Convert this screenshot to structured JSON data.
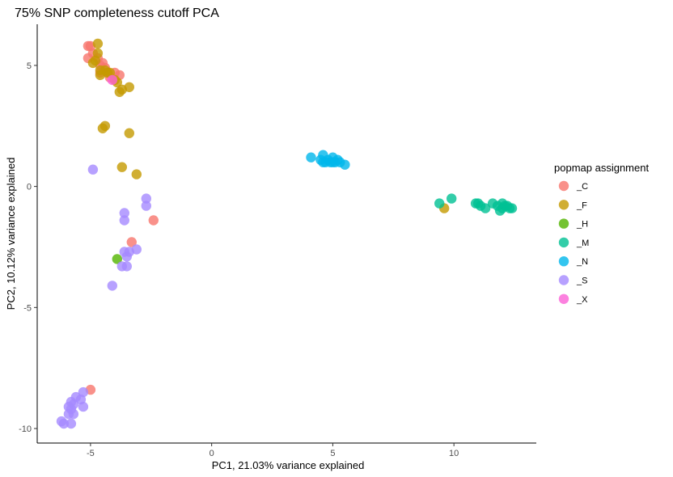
{
  "chart_data": {
    "type": "scatter",
    "title": "75% SNP completeness cutoff PCA",
    "xlabel": "PC1, 21.03% variance explained",
    "ylabel": "PC2, 10.12% variance explained",
    "xlim": [
      -7.2,
      13.4
    ],
    "ylim": [
      -10.6,
      6.7
    ],
    "xticks": [
      -5,
      0,
      5,
      10
    ],
    "yticks": [
      5,
      0,
      -5,
      -10
    ],
    "grid": false,
    "legend": {
      "title": "popmap assignment",
      "position": "right"
    },
    "series": [
      {
        "name": "_C",
        "color": "#F8766D",
        "points": [
          [
            -5.1,
            5.8
          ],
          [
            -5.0,
            5.8
          ],
          [
            -4.9,
            5.5
          ],
          [
            -5.1,
            5.3
          ],
          [
            -4.7,
            5.3
          ],
          [
            -4.6,
            5.0
          ],
          [
            -4.5,
            5.1
          ],
          [
            -4.4,
            4.9
          ],
          [
            -4.3,
            4.7
          ],
          [
            -4.6,
            4.7
          ],
          [
            -4.0,
            4.7
          ],
          [
            -3.8,
            4.6
          ],
          [
            -4.2,
            4.5
          ],
          [
            -2.4,
            -1.4
          ],
          [
            -3.3,
            -2.3
          ],
          [
            -5.0,
            -8.4
          ]
        ]
      },
      {
        "name": "_F",
        "color": "#C49A00",
        "points": [
          [
            -4.7,
            5.9
          ],
          [
            -4.7,
            5.5
          ],
          [
            -4.8,
            5.2
          ],
          [
            -4.9,
            5.1
          ],
          [
            -4.6,
            4.8
          ],
          [
            -4.4,
            4.8
          ],
          [
            -4.3,
            4.7
          ],
          [
            -4.2,
            4.7
          ],
          [
            -4.6,
            4.6
          ],
          [
            -3.9,
            4.3
          ],
          [
            -4.0,
            4.4
          ],
          [
            -3.4,
            4.1
          ],
          [
            -3.7,
            4.0
          ],
          [
            -3.8,
            3.9
          ],
          [
            -4.4,
            2.5
          ],
          [
            -4.5,
            2.4
          ],
          [
            -3.4,
            2.2
          ],
          [
            -3.7,
            0.8
          ],
          [
            -3.1,
            0.5
          ],
          [
            9.6,
            -0.9
          ]
        ]
      },
      {
        "name": "_H",
        "color": "#53B400",
        "points": [
          [
            -3.9,
            -3.0
          ]
        ]
      },
      {
        "name": "_M",
        "color": "#00C094",
        "points": [
          [
            9.4,
            -0.7
          ],
          [
            9.9,
            -0.5
          ],
          [
            10.9,
            -0.7
          ],
          [
            11.1,
            -0.8
          ],
          [
            11.0,
            -0.7
          ],
          [
            11.3,
            -0.9
          ],
          [
            11.6,
            -0.7
          ],
          [
            11.8,
            -0.8
          ],
          [
            12.0,
            -0.9
          ],
          [
            12.1,
            -0.8
          ],
          [
            11.9,
            -1.0
          ],
          [
            12.3,
            -0.9
          ],
          [
            12.0,
            -0.7
          ],
          [
            12.4,
            -0.9
          ],
          [
            12.2,
            -0.8
          ]
        ]
      },
      {
        "name": "_N",
        "color": "#00B6EB",
        "points": [
          [
            4.1,
            1.2
          ],
          [
            4.5,
            1.1
          ],
          [
            4.6,
            1.3
          ],
          [
            4.7,
            1.0
          ],
          [
            4.8,
            1.1
          ],
          [
            4.9,
            1.0
          ],
          [
            5.0,
            1.2
          ],
          [
            5.1,
            1.0
          ],
          [
            5.2,
            1.1
          ],
          [
            5.3,
            1.0
          ],
          [
            5.5,
            0.9
          ],
          [
            4.6,
            1.0
          ],
          [
            5.0,
            1.0
          ]
        ]
      },
      {
        "name": "_S",
        "color": "#A58AFF",
        "points": [
          [
            -4.9,
            0.7
          ],
          [
            -2.7,
            -0.5
          ],
          [
            -2.7,
            -0.8
          ],
          [
            -3.6,
            -1.1
          ],
          [
            -3.6,
            -1.4
          ],
          [
            -3.1,
            -2.6
          ],
          [
            -3.4,
            -2.7
          ],
          [
            -3.6,
            -2.7
          ],
          [
            -3.5,
            -2.9
          ],
          [
            -3.5,
            -3.3
          ],
          [
            -3.7,
            -3.3
          ],
          [
            -4.1,
            -4.1
          ],
          [
            -5.3,
            -8.5
          ],
          [
            -5.4,
            -8.8
          ],
          [
            -5.6,
            -8.7
          ],
          [
            -5.3,
            -9.1
          ],
          [
            -5.8,
            -8.9
          ],
          [
            -5.7,
            -9.0
          ],
          [
            -5.9,
            -9.1
          ],
          [
            -5.8,
            -9.2
          ],
          [
            -5.9,
            -9.4
          ],
          [
            -5.7,
            -9.4
          ],
          [
            -5.8,
            -9.8
          ],
          [
            -6.1,
            -9.8
          ],
          [
            -6.2,
            -9.7
          ]
        ]
      },
      {
        "name": "_X",
        "color": "#FB61D7",
        "points": [
          [
            -4.1,
            4.4
          ]
        ]
      }
    ]
  }
}
